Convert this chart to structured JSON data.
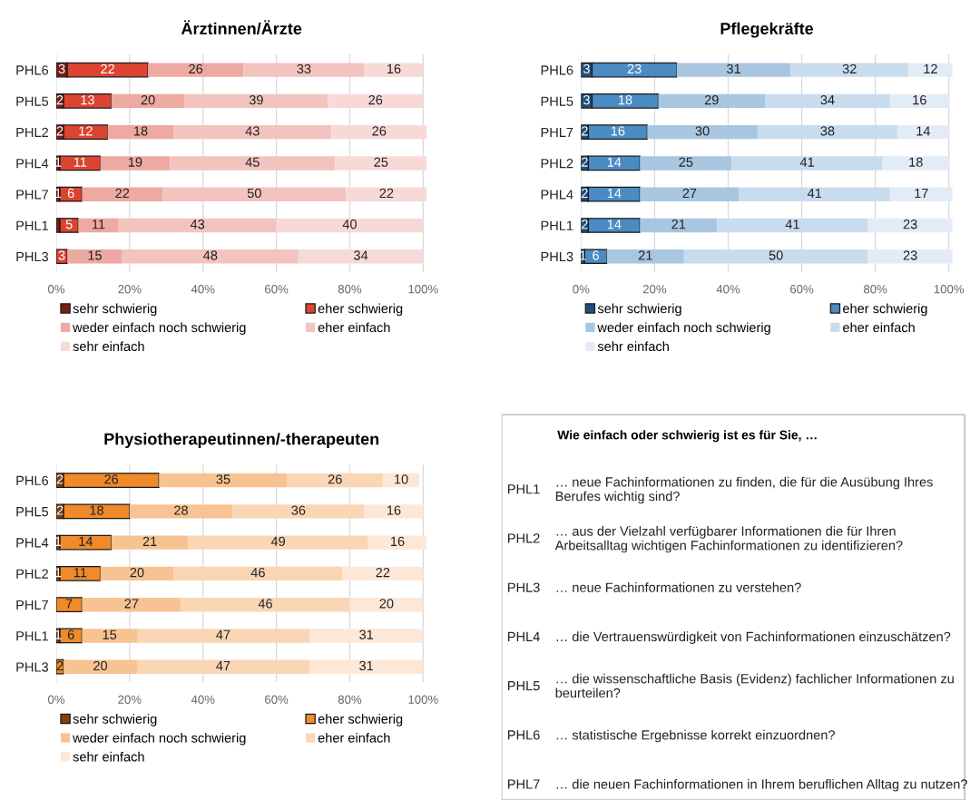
{
  "chart_data": [
    {
      "type": "bar",
      "orientation": "horizontal",
      "stacked": true,
      "title": "Ärztinnen/Ärzte",
      "categories": [
        "PHL6",
        "PHL5",
        "PHL2",
        "PHL4",
        "PHL7",
        "PHL1",
        "PHL3"
      ],
      "xlim": [
        0,
        101
      ],
      "xticks": [
        {
          "value": 0,
          "label": "0%"
        },
        {
          "value": 20,
          "label": "20%"
        },
        {
          "value": 40,
          "label": "40%"
        },
        {
          "value": 60,
          "label": "60%"
        },
        {
          "value": 80,
          "label": "80%"
        },
        {
          "value": 100,
          "label": "100%"
        }
      ],
      "grid": "x",
      "legend": "bottom",
      "data_labels": true,
      "series": [
        {
          "name": "sehr schwierig",
          "color": "#7a1e14",
          "values": [
            3,
            2,
            2,
            1,
            1,
            1,
            null
          ],
          "value_labels": [
            "3",
            "2",
            "2",
            "1",
            "1",
            null,
            null
          ]
        },
        {
          "name": "eher schwierig",
          "color": "#dc4330",
          "values": [
            22,
            13,
            12,
            11,
            6,
            5,
            3
          ]
        },
        {
          "name": "weder einfach noch schwierig",
          "color": "#eda9a2",
          "values": [
            26,
            20,
            18,
            19,
            22,
            11,
            15
          ]
        },
        {
          "name": "eher einfach",
          "color": "#f3c4bf",
          "values": [
            33,
            39,
            43,
            45,
            50,
            43,
            48
          ]
        },
        {
          "name": "sehr einfach",
          "color": "#f7dad7",
          "values": [
            16,
            26,
            26,
            25,
            22,
            40,
            34
          ]
        }
      ]
    },
    {
      "type": "bar",
      "orientation": "horizontal",
      "stacked": true,
      "title": "Pflegekräfte",
      "categories": [
        "PHL6",
        "PHL5",
        "PHL7",
        "PHL2",
        "PHL4",
        "PHL1",
        "PHL3"
      ],
      "xlim": [
        0,
        101
      ],
      "xticks": [
        {
          "value": 0,
          "label": "0%"
        },
        {
          "value": 20,
          "label": "20%"
        },
        {
          "value": 40,
          "label": "40%"
        },
        {
          "value": 60,
          "label": "60%"
        },
        {
          "value": 80,
          "label": "80%"
        },
        {
          "value": 100,
          "label": "100%"
        }
      ],
      "grid": "x",
      "legend": "bottom",
      "data_labels": true,
      "series": [
        {
          "name": "sehr schwierig",
          "color": "#1f4e79",
          "values": [
            3,
            3,
            2,
            2,
            2,
            2,
            1
          ]
        },
        {
          "name": "eher schwierig",
          "color": "#4a8bc4",
          "values": [
            23,
            18,
            16,
            14,
            14,
            14,
            6
          ]
        },
        {
          "name": "weder einfach noch schwierig",
          "color": "#a9c6e1",
          "values": [
            31,
            29,
            30,
            25,
            27,
            21,
            21
          ]
        },
        {
          "name": "eher einfach",
          "color": "#c9dcee",
          "values": [
            32,
            34,
            38,
            41,
            41,
            41,
            50
          ]
        },
        {
          "name": "sehr einfach",
          "color": "#e3ecf6",
          "values": [
            12,
            16,
            14,
            18,
            17,
            23,
            23
          ]
        }
      ]
    },
    {
      "type": "bar",
      "orientation": "horizontal",
      "stacked": true,
      "title": "Physiotherapeutinnen/-therapeuten",
      "categories": [
        "PHL6",
        "PHL5",
        "PHL4",
        "PHL2",
        "PHL7",
        "PHL1",
        "PHL3"
      ],
      "xlim": [
        0,
        101
      ],
      "xticks": [
        {
          "value": 0,
          "label": "0%"
        },
        {
          "value": 20,
          "label": "20%"
        },
        {
          "value": 40,
          "label": "40%"
        },
        {
          "value": 60,
          "label": "60%"
        },
        {
          "value": 80,
          "label": "80%"
        },
        {
          "value": 100,
          "label": "100%"
        }
      ],
      "grid": "x",
      "legend": "bottom",
      "data_labels": true,
      "series": [
        {
          "name": "sehr schwierig",
          "color": "#7f3f10",
          "values": [
            2,
            2,
            1,
            1,
            null,
            1,
            null
          ]
        },
        {
          "name": "eher schwierig",
          "color": "#f08a2a",
          "values": [
            26,
            18,
            14,
            11,
            7,
            6,
            2
          ]
        },
        {
          "name": "weder einfach noch schwierig",
          "color": "#f8c393",
          "values": [
            35,
            28,
            21,
            20,
            27,
            15,
            20
          ]
        },
        {
          "name": "eher einfach",
          "color": "#fad6b5",
          "values": [
            26,
            36,
            49,
            46,
            46,
            47,
            47
          ]
        },
        {
          "name": "sehr einfach",
          "color": "#fde8d8",
          "values": [
            10,
            16,
            16,
            22,
            20,
            31,
            31
          ]
        }
      ]
    },
    {
      "type": "other",
      "title": "Wie einfach oder schwierig ist es für Sie, …",
      "categories": [
        "PHL1",
        "PHL2",
        "PHL3",
        "PHL4",
        "PHL5",
        "PHL6",
        "PHL7"
      ],
      "annotations": [
        "… neue Fachinformationen zu finden, die für die Ausübung Ihres Berufes wichtig sind?",
        "… aus der Vielzahl verfügbarer Informationen die für Ihren Arbeitsalltag wichtigen Fachinformationen zu identifizieren?",
        "… neue Fachinformationen zu verstehen?",
        "… die Vertrauenswürdigkeit von Fachinformationen einzuschätzen?",
        "… die wissenschaftliche Basis (Evidenz) fachlicher Informationen zu beurteilen?",
        "… statistische Ergebnisse korrekt einzuordnen?",
        "… die neuen Fachinformationen in Ihrem beruflichen Alltag zu nutzen?"
      ]
    }
  ]
}
